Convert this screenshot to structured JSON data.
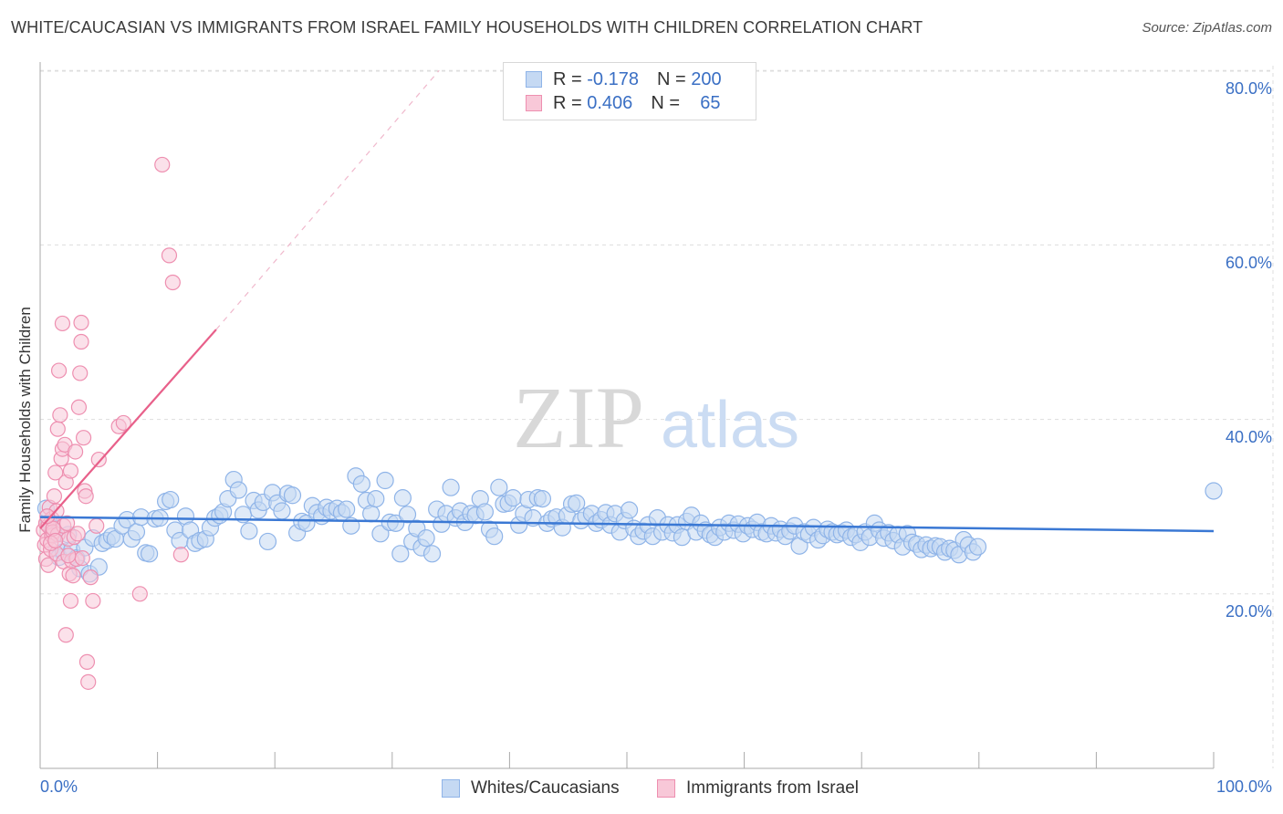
{
  "title": "WHITE/CAUCASIAN VS IMMIGRANTS FROM ISRAEL FAMILY HOUSEHOLDS WITH CHILDREN CORRELATION CHART",
  "source": "Source: ZipAtlas.com",
  "watermark": {
    "zip": "ZIP",
    "atlas": "atlas"
  },
  "legend": {
    "rows": [
      {
        "r_label": "R =",
        "r_value": "-0.178",
        "n_label": "N =",
        "n_value": "200"
      },
      {
        "r_label": "R =",
        "r_value": "0.406",
        "n_label": "N =",
        "n_value": "65"
      }
    ]
  },
  "bottom_legend": [
    "Whites/Caucasians",
    "Immigrants from Israel"
  ],
  "colors": {
    "blue": "#8fb4e8",
    "blue_fill": "#c5d9f3",
    "blue_line": "#3a78d4",
    "pink": "#ee8fb0",
    "pink_fill": "#f8c8d8",
    "pink_line": "#e8608a",
    "tick_text": "#3a6fc4"
  },
  "chart_data": {
    "type": "scatter",
    "title": "WHITE/CAUCASIAN VS IMMIGRANTS FROM ISRAEL FAMILY HOUSEHOLDS WITH CHILDREN CORRELATION CHART",
    "xlabel": "",
    "ylabel": "Family Households with Children",
    "xlim": [
      0,
      100
    ],
    "ylim": [
      0,
      85
    ],
    "x_tick_labels": [
      "0.0%",
      "100.0%"
    ],
    "y_ticks": [
      20,
      40,
      60,
      80
    ],
    "y_tick_labels": [
      "20.0%",
      "40.0%",
      "60.0%",
      "80.0%"
    ],
    "grid": true,
    "legend_position": "top-center",
    "series": [
      {
        "name": "Whites/Caucasians",
        "r": -0.178,
        "n": 200,
        "trend": {
          "x": [
            0,
            100
          ],
          "y": [
            28.8,
            27.2
          ]
        },
        "points": [
          [
            0.5,
            29.8
          ],
          [
            0.8,
            28.2
          ],
          [
            1.0,
            27.6
          ],
          [
            1.2,
            26.8
          ],
          [
            1.4,
            25.2
          ],
          [
            1.6,
            24.2
          ],
          [
            2.0,
            24.8
          ],
          [
            2.4,
            26.8
          ],
          [
            2.7,
            25.0
          ],
          [
            3.1,
            24.1
          ],
          [
            3.4,
            22.9
          ],
          [
            3.8,
            25.3
          ],
          [
            4.2,
            22.3
          ],
          [
            4.5,
            26.4
          ],
          [
            5.0,
            23.1
          ],
          [
            5.3,
            25.8
          ],
          [
            5.7,
            26.1
          ],
          [
            6.1,
            26.6
          ],
          [
            6.4,
            26.3
          ],
          [
            7.0,
            27.8
          ],
          [
            7.4,
            28.5
          ],
          [
            7.8,
            26.3
          ],
          [
            8.2,
            27.1
          ],
          [
            8.6,
            28.8
          ],
          [
            9.0,
            24.7
          ],
          [
            9.3,
            24.6
          ],
          [
            9.8,
            28.6
          ],
          [
            10.2,
            28.7
          ],
          [
            10.7,
            30.6
          ],
          [
            11.1,
            30.8
          ],
          [
            11.5,
            27.3
          ],
          [
            11.9,
            26.1
          ],
          [
            12.4,
            28.9
          ],
          [
            12.8,
            27.3
          ],
          [
            13.2,
            25.8
          ],
          [
            13.6,
            26.1
          ],
          [
            14.1,
            26.3
          ],
          [
            14.5,
            27.6
          ],
          [
            14.9,
            28.7
          ],
          [
            15.3,
            29.0
          ],
          [
            15.6,
            29.4
          ],
          [
            16.0,
            30.9
          ],
          [
            16.5,
            33.1
          ],
          [
            16.9,
            31.9
          ],
          [
            17.3,
            29.1
          ],
          [
            17.8,
            27.2
          ],
          [
            18.2,
            30.7
          ],
          [
            18.6,
            29.6
          ],
          [
            19.0,
            30.5
          ],
          [
            19.4,
            26.0
          ],
          [
            19.8,
            31.6
          ],
          [
            20.2,
            30.4
          ],
          [
            20.6,
            29.5
          ],
          [
            21.1,
            31.5
          ],
          [
            21.5,
            31.3
          ],
          [
            21.9,
            27.0
          ],
          [
            22.3,
            28.3
          ],
          [
            22.7,
            28.1
          ],
          [
            23.2,
            30.1
          ],
          [
            23.6,
            29.3
          ],
          [
            24.0,
            28.9
          ],
          [
            24.4,
            29.9
          ],
          [
            24.8,
            29.5
          ],
          [
            25.3,
            29.8
          ],
          [
            25.7,
            29.3
          ],
          [
            26.1,
            29.7
          ],
          [
            26.5,
            27.8
          ],
          [
            26.9,
            33.5
          ],
          [
            27.4,
            32.6
          ],
          [
            27.8,
            30.7
          ],
          [
            28.2,
            29.2
          ],
          [
            28.6,
            30.9
          ],
          [
            29.0,
            26.9
          ],
          [
            29.4,
            33.0
          ],
          [
            29.8,
            28.2
          ],
          [
            30.3,
            28.1
          ],
          [
            30.7,
            24.6
          ],
          [
            30.9,
            31.0
          ],
          [
            31.3,
            29.1
          ],
          [
            31.7,
            26.0
          ],
          [
            32.1,
            27.5
          ],
          [
            32.5,
            25.3
          ],
          [
            32.9,
            26.4
          ],
          [
            33.4,
            24.6
          ],
          [
            33.8,
            29.7
          ],
          [
            34.2,
            28.0
          ],
          [
            34.6,
            29.2
          ],
          [
            35.0,
            32.2
          ],
          [
            35.4,
            28.7
          ],
          [
            35.8,
            29.5
          ],
          [
            36.2,
            28.2
          ],
          [
            36.7,
            29.2
          ],
          [
            37.1,
            29.0
          ],
          [
            37.5,
            30.9
          ],
          [
            37.9,
            29.4
          ],
          [
            38.3,
            27.4
          ],
          [
            38.7,
            26.6
          ],
          [
            39.1,
            32.2
          ],
          [
            39.5,
            30.3
          ],
          [
            39.9,
            30.4
          ],
          [
            40.3,
            31.0
          ],
          [
            40.8,
            27.9
          ],
          [
            41.2,
            29.2
          ],
          [
            41.6,
            30.8
          ],
          [
            42.0,
            28.7
          ],
          [
            42.4,
            31.0
          ],
          [
            42.8,
            30.9
          ],
          [
            43.2,
            28.1
          ],
          [
            43.6,
            28.6
          ],
          [
            44.0,
            28.8
          ],
          [
            44.5,
            27.6
          ],
          [
            44.9,
            29.0
          ],
          [
            45.3,
            30.3
          ],
          [
            45.7,
            30.4
          ],
          [
            46.1,
            28.4
          ],
          [
            46.5,
            28.9
          ],
          [
            47.0,
            29.2
          ],
          [
            47.4,
            28.1
          ],
          [
            47.8,
            28.5
          ],
          [
            48.2,
            29.3
          ],
          [
            48.6,
            27.9
          ],
          [
            49.0,
            29.2
          ],
          [
            49.4,
            27.1
          ],
          [
            49.8,
            28.4
          ],
          [
            50.2,
            29.6
          ],
          [
            50.6,
            27.5
          ],
          [
            51.0,
            26.6
          ],
          [
            51.4,
            27.2
          ],
          [
            51.8,
            27.9
          ],
          [
            52.2,
            26.6
          ],
          [
            52.6,
            28.7
          ],
          [
            53.0,
            27.1
          ],
          [
            53.5,
            27.9
          ],
          [
            53.9,
            27.0
          ],
          [
            54.3,
            27.9
          ],
          [
            54.7,
            26.5
          ],
          [
            55.1,
            28.3
          ],
          [
            55.5,
            29.0
          ],
          [
            55.9,
            27.1
          ],
          [
            56.3,
            28.1
          ],
          [
            56.7,
            27.3
          ],
          [
            57.1,
            26.8
          ],
          [
            57.5,
            26.5
          ],
          [
            57.9,
            27.6
          ],
          [
            58.3,
            27.1
          ],
          [
            58.7,
            28.1
          ],
          [
            59.1,
            27.3
          ],
          [
            59.5,
            28.0
          ],
          [
            59.9,
            26.9
          ],
          [
            60.3,
            27.8
          ],
          [
            60.7,
            27.4
          ],
          [
            61.1,
            28.2
          ],
          [
            61.5,
            27.1
          ],
          [
            61.9,
            26.9
          ],
          [
            62.3,
            27.8
          ],
          [
            62.7,
            27.0
          ],
          [
            63.1,
            27.4
          ],
          [
            63.5,
            26.6
          ],
          [
            63.9,
            27.2
          ],
          [
            64.3,
            27.8
          ],
          [
            64.7,
            25.5
          ],
          [
            65.1,
            27.1
          ],
          [
            65.5,
            26.8
          ],
          [
            65.9,
            27.6
          ],
          [
            66.3,
            26.2
          ],
          [
            66.7,
            26.7
          ],
          [
            67.1,
            27.4
          ],
          [
            67.5,
            27.1
          ],
          [
            67.9,
            26.8
          ],
          [
            68.3,
            27.0
          ],
          [
            68.7,
            27.3
          ],
          [
            69.1,
            26.5
          ],
          [
            69.5,
            26.8
          ],
          [
            69.9,
            25.9
          ],
          [
            70.3,
            27.1
          ],
          [
            70.7,
            26.5
          ],
          [
            71.1,
            28.1
          ],
          [
            71.5,
            27.3
          ],
          [
            71.9,
            26.4
          ],
          [
            72.3,
            27.0
          ],
          [
            72.7,
            26.1
          ],
          [
            73.1,
            26.8
          ],
          [
            73.5,
            25.4
          ],
          [
            73.9,
            26.9
          ],
          [
            74.3,
            25.9
          ],
          [
            74.7,
            25.7
          ],
          [
            75.1,
            25.1
          ],
          [
            75.5,
            25.6
          ],
          [
            75.9,
            25.2
          ],
          [
            76.3,
            25.5
          ],
          [
            76.7,
            25.4
          ],
          [
            77.1,
            24.8
          ],
          [
            77.5,
            25.2
          ],
          [
            77.9,
            25.0
          ],
          [
            78.3,
            24.5
          ],
          [
            78.7,
            26.2
          ],
          [
            79.1,
            25.6
          ],
          [
            79.5,
            24.8
          ],
          [
            79.9,
            25.4
          ],
          [
            100.0,
            31.8
          ]
        ]
      },
      {
        "name": "Immigrants from Israel",
        "r": 0.406,
        "n": 65,
        "trend": {
          "x": [
            0,
            15
          ],
          "y": [
            27.5,
            50.3
          ]
        },
        "trend_dashed_extension": {
          "x": [
            15,
            34
          ],
          "y": [
            50.3,
            80
          ]
        },
        "points": [
          [
            0.3,
            27.3
          ],
          [
            0.4,
            25.6
          ],
          [
            0.5,
            24.0
          ],
          [
            0.5,
            28.1
          ],
          [
            0.6,
            26.2
          ],
          [
            0.7,
            23.3
          ],
          [
            0.7,
            27.8
          ],
          [
            0.8,
            29.9
          ],
          [
            0.9,
            25.1
          ],
          [
            1.0,
            26.7
          ],
          [
            1.0,
            28.6
          ],
          [
            1.1,
            27.1
          ],
          [
            1.2,
            31.2
          ],
          [
            1.3,
            33.9
          ],
          [
            1.4,
            24.6
          ],
          [
            1.4,
            29.5
          ],
          [
            1.5,
            38.9
          ],
          [
            1.5,
            26.8
          ],
          [
            1.6,
            45.6
          ],
          [
            1.7,
            40.5
          ],
          [
            1.8,
            35.5
          ],
          [
            1.9,
            36.6
          ],
          [
            1.9,
            51.0
          ],
          [
            2.0,
            23.7
          ],
          [
            2.0,
            27.8
          ],
          [
            2.1,
            37.1
          ],
          [
            2.2,
            15.3
          ],
          [
            2.2,
            32.8
          ],
          [
            2.3,
            28.1
          ],
          [
            2.4,
            26.3
          ],
          [
            2.5,
            22.3
          ],
          [
            2.6,
            19.2
          ],
          [
            2.6,
            34.1
          ],
          [
            2.7,
            23.8
          ],
          [
            2.8,
            22.1
          ],
          [
            2.9,
            26.5
          ],
          [
            3.0,
            36.3
          ],
          [
            3.1,
            24.0
          ],
          [
            3.2,
            26.9
          ],
          [
            3.3,
            41.4
          ],
          [
            3.4,
            45.3
          ],
          [
            3.5,
            51.1
          ],
          [
            3.5,
            48.9
          ],
          [
            3.6,
            24.1
          ],
          [
            3.7,
            37.9
          ],
          [
            3.8,
            31.8
          ],
          [
            3.9,
            31.2
          ],
          [
            4.0,
            12.2
          ],
          [
            4.1,
            9.9
          ],
          [
            4.3,
            21.9
          ],
          [
            4.5,
            19.2
          ],
          [
            4.8,
            27.8
          ],
          [
            5.0,
            35.4
          ],
          [
            6.7,
            39.2
          ],
          [
            7.1,
            39.6
          ],
          [
            8.5,
            20.0
          ],
          [
            10.4,
            69.2
          ],
          [
            11.0,
            58.8
          ],
          [
            11.3,
            55.7
          ],
          [
            12.0,
            24.5
          ],
          [
            0.9,
            25.8
          ],
          [
            1.1,
            27.5
          ],
          [
            1.3,
            26.1
          ],
          [
            0.6,
            28.9
          ],
          [
            2.4,
            24.4
          ]
        ]
      }
    ]
  }
}
